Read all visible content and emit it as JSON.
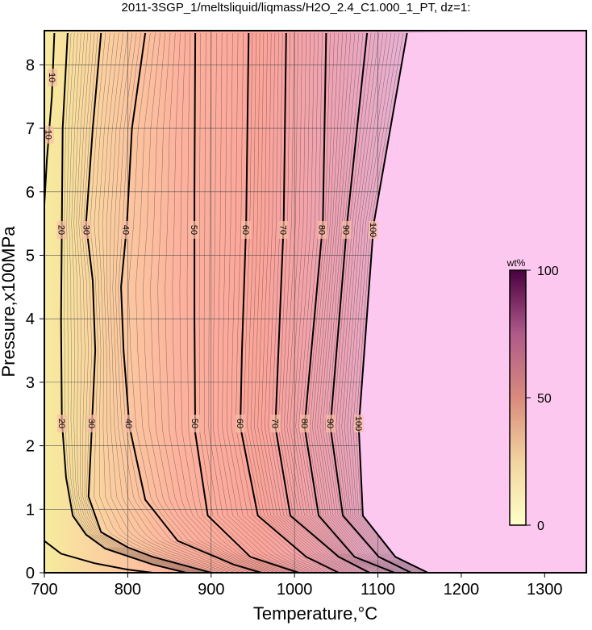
{
  "chart_data": {
    "type": "contour",
    "title": "2011-3SGP_1/meltsliquid/liqmass/H2O_2.4_C1.000_1_PT, dz=1:",
    "x_label": "Temperature,°C",
    "y_label": "Pressure,x100MPa",
    "xlim": [
      700,
      1350
    ],
    "xticks": [
      700,
      800,
      900,
      1000,
      1100,
      1200,
      1300
    ],
    "ylim": [
      0,
      8.5
    ],
    "yticks": [
      0,
      1,
      2,
      3,
      4,
      5,
      6,
      7,
      8
    ],
    "grid": true,
    "contours": [
      {
        "level": 10,
        "x": [
          712,
          709,
          703,
          700,
          null,
          700,
          720,
          760,
          800,
          830
        ],
        "y": [
          8.5,
          7.5,
          6.5,
          5.8,
          null,
          0.5,
          0.3,
          0.15,
          0.05,
          0
        ]
      },
      {
        "level": 20,
        "x": [
          728,
          722,
          721,
          720,
          721,
          726,
          734,
          750,
          773,
          830,
          870
        ],
        "y": [
          8.5,
          7,
          5.5,
          4,
          2.4,
          1.5,
          0.9,
          0.6,
          0.38,
          0.13,
          0
        ]
      },
      {
        "level": 30,
        "x": [
          768,
          758,
          750,
          758,
          761,
          757,
          753,
          768,
          800,
          830,
          900
        ],
        "y": [
          8.5,
          7,
          5.5,
          4.6,
          3.5,
          2.3,
          1.2,
          0.64,
          0.4,
          0.25,
          0
        ]
      },
      {
        "level": 40,
        "x": [
          821,
          805,
          799,
          792,
          795,
          802,
          821,
          860,
          927,
          960
        ],
        "y": [
          8.5,
          7,
          5.5,
          4.5,
          3.5,
          2.3,
          1.15,
          0.5,
          0.13,
          0
        ]
      },
      {
        "level": 50,
        "x": [
          881,
          880,
          880,
          881,
          896,
          947,
          1005
        ],
        "y": [
          8.5,
          6,
          4,
          2.2,
          0.9,
          0.25,
          0
        ]
      },
      {
        "level": 60,
        "x": [
          945,
          942,
          937,
          935,
          956,
          1014,
          1053
        ],
        "y": [
          8.5,
          5.5,
          3.5,
          2.3,
          0.9,
          0.25,
          0
        ]
      },
      {
        "level": 70,
        "x": [
          990,
          987,
          977,
          995,
          1053,
          1090
        ],
        "y": [
          8.5,
          5.5,
          2.3,
          0.9,
          0.25,
          0
        ]
      },
      {
        "level": 80,
        "x": [
          1038,
          1034,
          1012,
          1029,
          1072,
          1120
        ],
        "y": [
          8.5,
          5.5,
          2.3,
          0.9,
          0.25,
          0
        ]
      },
      {
        "level": 90,
        "x": [
          1087,
          1063,
          1043,
          1058,
          1101,
          1140
        ],
        "y": [
          8.5,
          5.5,
          2.3,
          0.9,
          0.25,
          0
        ]
      },
      {
        "level": 100,
        "x": [
          1135,
          1095,
          1077,
          1082,
          1121,
          1160
        ],
        "y": [
          8.5,
          5.5,
          2.3,
          0.9,
          0.25,
          0
        ]
      }
    ],
    "colorbar": {
      "label": "wt%",
      "lim": [
        0,
        100
      ],
      "ticks": [
        0,
        50,
        100
      ]
    }
  }
}
